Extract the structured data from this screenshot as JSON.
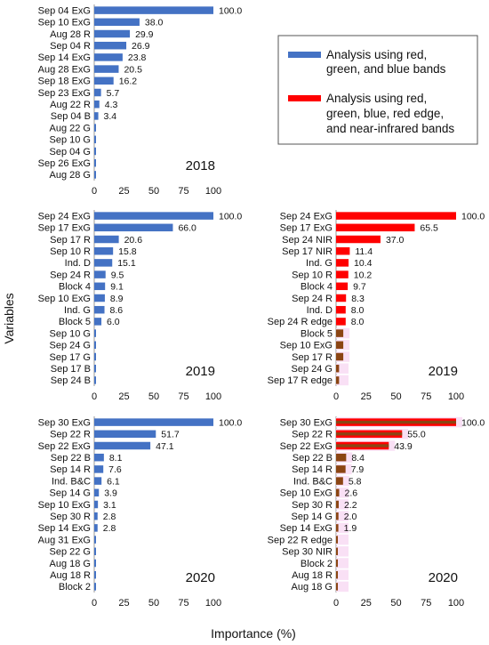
{
  "colors": {
    "rgb": "#4472C4",
    "multi": "#FF0000",
    "multi_dark": "#8B4513",
    "highlight": "#F9E0F5"
  },
  "axis": {
    "xlabel": "Importance (%)",
    "ylabel": "Variables",
    "ticks": [
      "0",
      "25",
      "50",
      "75",
      "100"
    ]
  },
  "legend": {
    "rgb": [
      "Analysis using red,",
      "green, and blue bands"
    ],
    "multi": [
      "Analysis using red,",
      "green, blue, red edge,",
      "and near-infrared bands"
    ]
  },
  "chart_data": [
    {
      "type": "bar",
      "orientation": "horizontal",
      "year": "2018",
      "bands": "RGB",
      "xlim": [
        0,
        100
      ],
      "categories": [
        "Sep 04 ExG",
        "Sep 10 ExG",
        "Aug 28 R",
        "Sep 04 R",
        "Sep 14 ExG",
        "Aug 28 ExG",
        "Sep 18 ExG",
        "Sep 23 ExG",
        "Aug 22 R",
        "Sep 04 B",
        "Aug 22 G",
        "Sep 10 G",
        "Sep 04 G",
        "Sep 26 ExG",
        "Aug 28 G"
      ],
      "values": [
        100.0,
        38.0,
        29.9,
        26.9,
        23.8,
        20.5,
        16.2,
        5.7,
        4.3,
        3.4,
        0.4,
        0.4,
        0.4,
        0.4,
        0.4
      ],
      "labels": [
        "100.0",
        "38.0",
        "29.9",
        "26.9",
        "23.8",
        "20.5",
        "16.2",
        "5.7",
        "4.3",
        "3.4",
        "",
        "",
        "",
        "",
        ""
      ]
    },
    {
      "type": "bar",
      "orientation": "horizontal",
      "year": "2019",
      "bands": "RGB",
      "xlim": [
        0,
        100
      ],
      "categories": [
        "Sep 24 ExG",
        "Sep 17 ExG",
        "Sep 17 R",
        "Sep 10 R",
        "Ind. D",
        "Sep 24 R",
        "Block 4",
        "Sep 10 ExG",
        "Ind. G",
        "Block 5",
        "Sep 10 G",
        "Sep 24 G",
        "Sep 17 G",
        "Sep 17 B",
        "Sep 24 B"
      ],
      "values": [
        100.0,
        66.0,
        20.6,
        15.8,
        15.1,
        9.5,
        9.1,
        8.9,
        8.6,
        6.0,
        0.4,
        0.4,
        0.4,
        0.4,
        0.4
      ],
      "labels": [
        "100.0",
        "66.0",
        "20.6",
        "15.8",
        "15.1",
        "9.5",
        "9.1",
        "8.9",
        "8.6",
        "6.0",
        "",
        "",
        "",
        "",
        ""
      ]
    },
    {
      "type": "bar",
      "orientation": "horizontal",
      "year": "2019",
      "bands": "RGB+RE+NIR",
      "xlim": [
        0,
        100
      ],
      "categories": [
        "Sep 24 ExG",
        "Sep 17 ExG",
        "Sep 24 NIR",
        "Sep 17 NIR",
        "Ind. G",
        "Sep 10 R",
        "Block 4",
        "Sep 24 R",
        "Ind. D",
        "Sep 24 R edge",
        "Block 5",
        "Sep 10 ExG",
        "Sep 17 R",
        "Sep 24 G",
        "Sep 17 R edge"
      ],
      "values": [
        100.0,
        65.5,
        37.0,
        11.4,
        10.4,
        10.2,
        9.7,
        8.3,
        8.0,
        8.0,
        6.0,
        6.0,
        6.0,
        2.5,
        2.5
      ],
      "labels": [
        "100.0",
        "65.5",
        "37.0",
        "11.4",
        "10.4",
        "10.2",
        "9.7",
        "8.3",
        "8.0",
        "8.0",
        "",
        "",
        "",
        "",
        ""
      ],
      "highlight_from": 10
    },
    {
      "type": "bar",
      "orientation": "horizontal",
      "year": "2020",
      "bands": "RGB",
      "xlim": [
        0,
        100
      ],
      "categories": [
        "Sep 30 ExG",
        "Sep 22 R",
        "Sep 22 ExG",
        "Sep 22 B",
        "Sep 14 R",
        "Ind. B&C",
        "Sep 14 G",
        "Sep 10 ExG",
        "Sep 30 R",
        "Sep 14 ExG",
        "Aug 31 ExG",
        "Sep 22 G",
        "Aug 18 G",
        "Aug 18 R",
        "Block 2"
      ],
      "values": [
        100.0,
        51.7,
        47.1,
        8.1,
        7.6,
        6.1,
        3.9,
        3.1,
        2.8,
        2.8,
        0.4,
        0.4,
        0.4,
        0.4,
        0.4
      ],
      "labels": [
        "100.0",
        "51.7",
        "47.1",
        "8.1",
        "7.6",
        "6.1",
        "3.9",
        "3.1",
        "2.8",
        "2.8",
        "",
        "",
        "",
        "",
        ""
      ]
    },
    {
      "type": "bar",
      "orientation": "horizontal",
      "year": "2020",
      "bands": "RGB+RE+NIR",
      "xlim": [
        0,
        100
      ],
      "categories": [
        "Sep 30 ExG",
        "Sep 22 R",
        "Sep 22 ExG",
        "Sep 22 B",
        "Sep 14 R",
        "Ind. B&C",
        "Sep 10 ExG",
        "Sep 30 R",
        "Sep 14 G",
        "Sep 14 ExG",
        "Sep 22 R edge",
        "Sep 30 NIR",
        "Block 2",
        "Aug 18 R",
        "Aug 18 G"
      ],
      "values": [
        100.0,
        55.0,
        43.9,
        8.4,
        7.9,
        5.8,
        2.6,
        2.2,
        2.0,
        1.9,
        0.4,
        0.4,
        0.4,
        0.4,
        0.4
      ],
      "labels": [
        "100.0",
        "55.0",
        "43.9",
        "8.4",
        "7.9",
        "5.8",
        "2.6",
        "2.2",
        "2.0",
        "1.9",
        "",
        "",
        "",
        "",
        ""
      ],
      "highlight_from": 0
    }
  ]
}
